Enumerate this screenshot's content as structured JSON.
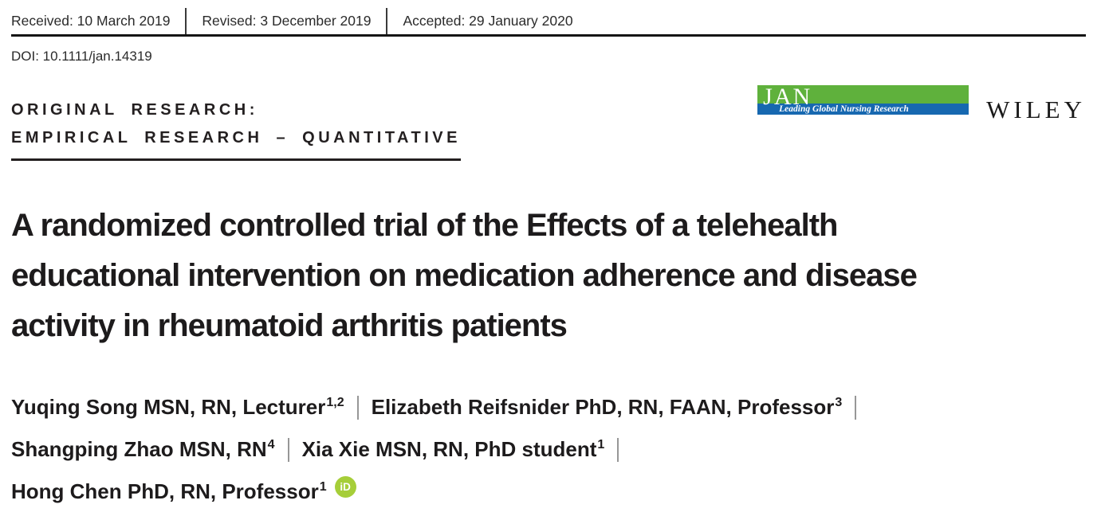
{
  "dates": {
    "received": "Received: 10 March 2019",
    "revised": "Revised: 3 December 2019",
    "accepted": "Accepted: 29 January 2020"
  },
  "doi": "DOI: 10.1111/jan.14319",
  "article_type": {
    "line1": "ORIGINAL RESEARCH:",
    "line2": "EMPIRICAL RESEARCH – QUANTITATIVE"
  },
  "journal": {
    "logo_text": "JAN",
    "tagline": "Leading Global Nursing Research"
  },
  "publisher": {
    "name": "WILEY"
  },
  "title": {
    "full": "A randomized controlled trial of the Effects of a telehealth educational intervention on medication adherence and disease activity in rheumatoid arthritis patients",
    "line1": "A randomized controlled trial of the Effects of a telehealth",
    "line2": "educational intervention on medication adherence and disease",
    "line3": "activity in rheumatoid arthritis patients"
  },
  "authors": [
    {
      "name": "Yuqing Song MSN, RN, Lecturer",
      "affiliations": "1,2"
    },
    {
      "name": "Elizabeth Reifsnider PhD, RN, FAAN, Professor",
      "affiliations": "3"
    },
    {
      "name": "Shangping Zhao MSN, RN",
      "affiliations": "4"
    },
    {
      "name": "Xia Xie MSN, RN, PhD student",
      "affiliations": "1"
    },
    {
      "name": "Hong Chen PhD, RN, Professor",
      "affiliations": "1"
    }
  ],
  "orcid_icon_label": "iD",
  "colors": {
    "jan_green": "#5fb13c",
    "jan_blue": "#1768b0",
    "orcid_green": "#a6ce39"
  }
}
